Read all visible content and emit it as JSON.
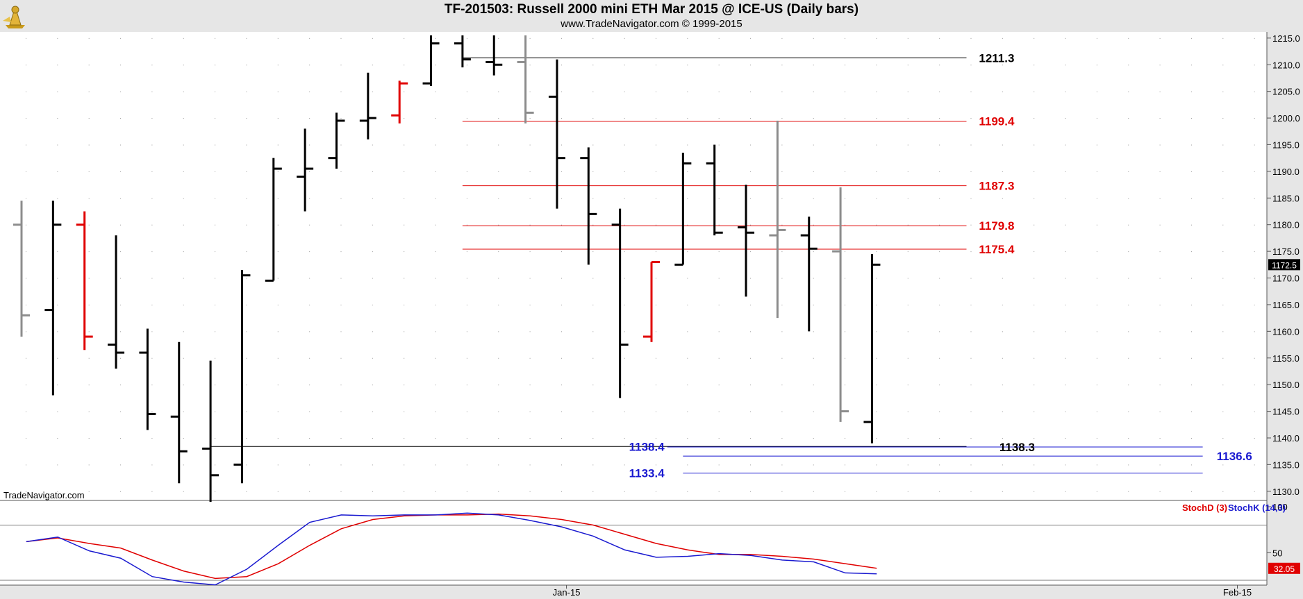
{
  "chart_data": {
    "type": "ohlc",
    "title": "TF-201503:  Russell 2000 mini ETH Mar 2015 @ ICE-US  (Daily bars)",
    "subtitle": "www.TradeNavigator.com © 1999-2015",
    "watermark": "TradeNavigator.com",
    "price_axis": {
      "ylim": [
        1127.5,
        1215.5
      ],
      "ticks": [
        "1130.0",
        "1135.0",
        "1140.0",
        "1145.0",
        "1150.0",
        "1155.0",
        "1160.0",
        "1165.0",
        "1170.0",
        "1175.0",
        "1180.0",
        "1185.0",
        "1190.0",
        "1195.0",
        "1200.0",
        "1205.0",
        "1210.0",
        "1215.0"
      ]
    },
    "x_axis": {
      "labels": [
        "Jan-15",
        "Feb-15"
      ],
      "label_bars": [
        17.3,
        38.6
      ]
    },
    "bars": [
      {
        "o": 1180.0,
        "h": 1184.5,
        "l": 1159.0,
        "c": 1163.0,
        "color": "gray"
      },
      {
        "o": 1164.0,
        "h": 1184.5,
        "l": 1148.0,
        "c": 1180.0,
        "color": "black"
      },
      {
        "o": 1180.0,
        "h": 1182.5,
        "l": 1156.5,
        "c": 1159.0,
        "color": "red"
      },
      {
        "o": 1157.5,
        "h": 1178.0,
        "l": 1153.0,
        "c": 1156.0,
        "color": "black"
      },
      {
        "o": 1156.0,
        "h": 1160.5,
        "l": 1141.5,
        "c": 1144.5,
        "color": "black"
      },
      {
        "o": 1144.0,
        "h": 1158.0,
        "l": 1131.5,
        "c": 1137.5,
        "color": "black"
      },
      {
        "o": 1138.0,
        "h": 1154.5,
        "l": 1128.0,
        "c": 1133.0,
        "color": "black"
      },
      {
        "o": 1135.0,
        "h": 1171.5,
        "l": 1131.5,
        "c": 1170.5,
        "color": "black"
      },
      {
        "o": 1169.5,
        "h": 1192.5,
        "l": 1169.5,
        "c": 1190.5,
        "color": "black"
      },
      {
        "o": 1189.0,
        "h": 1198.0,
        "l": 1182.5,
        "c": 1190.5,
        "color": "black"
      },
      {
        "o": 1192.5,
        "h": 1201.0,
        "l": 1190.5,
        "c": 1199.5,
        "color": "black"
      },
      {
        "o": 1199.5,
        "h": 1208.5,
        "l": 1196.0,
        "c": 1200.0,
        "color": "black"
      },
      {
        "o": 1200.5,
        "h": 1207.0,
        "l": 1199.0,
        "c": 1206.5,
        "color": "red"
      },
      {
        "o": 1206.5,
        "h": 1215.5,
        "l": 1206.0,
        "c": 1214.0,
        "color": "black"
      },
      {
        "o": 1214.0,
        "h": 1215.5,
        "l": 1209.5,
        "c": 1211.0,
        "color": "black"
      },
      {
        "o": 1210.5,
        "h": 1215.5,
        "l": 1208.0,
        "c": 1210.0,
        "color": "black"
      },
      {
        "o": 1210.5,
        "h": 1215.5,
        "l": 1199.0,
        "c": 1201.0,
        "color": "gray"
      },
      {
        "o": 1204.0,
        "h": 1211.0,
        "l": 1183.0,
        "c": 1192.5,
        "color": "black"
      },
      {
        "o": 1192.5,
        "h": 1194.5,
        "l": 1172.5,
        "c": 1182.0,
        "color": "black"
      },
      {
        "o": 1180.0,
        "h": 1183.0,
        "l": 1147.5,
        "c": 1157.5,
        "color": "black"
      },
      {
        "o": 1159.0,
        "h": 1173.0,
        "l": 1158.0,
        "c": 1173.0,
        "color": "red"
      },
      {
        "o": 1172.5,
        "h": 1193.5,
        "l": 1172.5,
        "c": 1191.5,
        "color": "black"
      },
      {
        "o": 1191.5,
        "h": 1195.0,
        "l": 1178.0,
        "c": 1178.5,
        "color": "black"
      },
      {
        "o": 1179.5,
        "h": 1187.5,
        "l": 1166.5,
        "c": 1178.5,
        "color": "black"
      },
      {
        "o": 1178.0,
        "h": 1199.5,
        "l": 1162.5,
        "c": 1179.0,
        "color": "gray"
      },
      {
        "o": 1178.0,
        "h": 1181.5,
        "l": 1160.0,
        "c": 1175.5,
        "color": "black"
      },
      {
        "o": 1175.0,
        "h": 1187.0,
        "l": 1143.0,
        "c": 1145.0,
        "color": "gray"
      },
      {
        "o": 1143.0,
        "h": 1174.5,
        "l": 1139.0,
        "c": 1172.5,
        "color": "black"
      }
    ],
    "levels": [
      {
        "price": 1211.3,
        "label": "1211.3",
        "color": "#000000",
        "from_bar": 14.0,
        "to_bar": 30.0,
        "label_bar": 30.35,
        "label_side": "right"
      },
      {
        "price": 1199.4,
        "label": "1199.4",
        "color": "#e00000",
        "from_bar": 14.0,
        "to_bar": 30.0,
        "label_bar": 30.35,
        "label_side": "right"
      },
      {
        "price": 1187.3,
        "label": "1187.3",
        "color": "#e00000",
        "from_bar": 14.0,
        "to_bar": 30.0,
        "label_bar": 30.35,
        "label_side": "right"
      },
      {
        "price": 1179.8,
        "label": "1179.8",
        "color": "#e00000",
        "from_bar": 14.0,
        "to_bar": 30.0,
        "label_bar": 30.35,
        "label_side": "right"
      },
      {
        "price": 1175.4,
        "label": "1175.4",
        "color": "#e00000",
        "from_bar": 14.0,
        "to_bar": 30.0,
        "label_bar": 30.35,
        "label_side": "right"
      },
      {
        "price": 1138.4,
        "label": "1138.4",
        "color": "#000000",
        "from_bar": 6.0,
        "to_bar": 30.0,
        "label_bar": 20.5,
        "label_side": "left",
        "label_color": "#1a1ad0"
      },
      {
        "price": 1138.3,
        "label": "1138.3",
        "color": "#1a1ad0",
        "from_bar": 20.5,
        "to_bar": 37.5,
        "label_bar": 31.0,
        "label_side": "right",
        "label_color": "#000000"
      },
      {
        "price": 1136.6,
        "label": "1136.6",
        "color": "#1a1ad0",
        "from_bar": 21.0,
        "to_bar": 37.5,
        "label_bar": 37.9,
        "label_side": "right"
      },
      {
        "price": 1133.4,
        "label": "1133.4",
        "color": "#1a1ad0",
        "from_bar": 21.0,
        "to_bar": 37.5,
        "label_bar": 20.5,
        "label_side": "left"
      }
    ],
    "last_price": "1172.5",
    "stochastic": {
      "ylim": [
        17,
        103
      ],
      "ticks": [
        "100",
        "50"
      ],
      "ref_lines": [
        80,
        20
      ],
      "series": [
        {
          "name": "StochD (3)",
          "color": "#e00000",
          "values": [
            62,
            66,
            60,
            55,
            42,
            30,
            22,
            24,
            38,
            58,
            76,
            86,
            90,
            91,
            91,
            92,
            90,
            86,
            80,
            70,
            60,
            53,
            48,
            48,
            46,
            43,
            38,
            33
          ]
        },
        {
          "name": "StochK (14,3)",
          "color": "#1a1ad0",
          "values": [
            62,
            67,
            52,
            44,
            24,
            18,
            15,
            32,
            58,
            83,
            91,
            90,
            91,
            91,
            93,
            91,
            85,
            78,
            68,
            53,
            45,
            46,
            49,
            47,
            42,
            40,
            28,
            27
          ]
        }
      ],
      "last_value": "32.05"
    }
  }
}
